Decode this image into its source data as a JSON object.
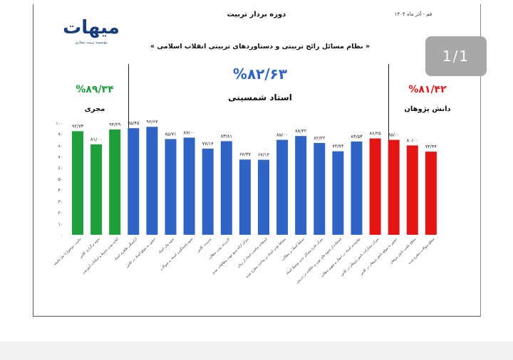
{
  "header": {
    "title": "دوره بردار تربیت",
    "date": "قم - آذر ماه ۱۴۰۴",
    "subtitle": "« نظام مسائل رائج تربیتی و دستاوردهای تربیتی انقلاب اسلامی »",
    "logo_text": "میهات",
    "logo_subtext": "مؤسسه تربیت مجازی"
  },
  "page_indicator": "1/1",
  "groups": [
    {
      "name": "مجری",
      "percent": "%۸۹/۳۴",
      "color": "#1e9e3c"
    },
    {
      "name": "استاد شمسینی",
      "percent": "%۸۲/۶۳",
      "color": "#2f64c5"
    },
    {
      "name": "دانش پژوهان",
      "percent": "%۸۱/۴۲",
      "color": "#e31515"
    }
  ],
  "chart_data": {
    "type": "bar",
    "y_tick_labels": [
      "۰",
      "۱۰",
      "۲۰",
      "۳۰",
      "۴۰",
      "۵۰",
      "۶۰",
      "۷۰",
      "۸۰",
      "۹۰",
      "۱۰۰"
    ],
    "ylim": [
      0,
      100
    ],
    "grid": false,
    "bars": [
      {
        "label": "تناسب موضوع با نیاز جامعه",
        "value": 92.73,
        "value_label": "۹۲/۷۳",
        "color": "#1e9e3c"
      },
      {
        "label": "نحوه برگزاری کلاس",
        "value": 81.0,
        "value_label": "۸۱/۰۰",
        "color": "#1e9e3c"
      },
      {
        "label": "آماده بودن محیط و امکانات آموزشی",
        "value": 94.29,
        "value_label": "۹۴/۲۹",
        "color": "#1e9e3c"
      },
      {
        "label": "آراستگی ظاهری استاد",
        "value": 95.45,
        "value_label": "۹۵/۴۵",
        "color": "#2f64c5"
      },
      {
        "label": "حضور به موقع استاد در کلاس",
        "value": 96.67,
        "value_label": "۹۶/۶۷",
        "color": "#2f64c5"
      },
      {
        "label": "نحوه بیان استاد",
        "value": 85.71,
        "value_label": "۸۵/۷۱",
        "color": "#2f64c5"
      },
      {
        "label": "نحوه پاسخگویی استاد به سوالات",
        "value": 87.0,
        "value_label": "۸۷/۰۰",
        "color": "#2f64c5"
      },
      {
        "label": "مدیریت کلاس",
        "value": 77.14,
        "value_label": "۷۷/۱۴",
        "color": "#2f64c5"
      },
      {
        "label": "کاربردی بودن مطالب",
        "value": 83.81,
        "value_label": "۸۳/۸۱",
        "color": "#2f64c5"
      },
      {
        "label": "میزان ارائه منبع جهت مطالعات بعدی",
        "value": 67.37,
        "value_label": "۶۷/۳۷",
        "color": "#2f64c5"
      },
      {
        "label": "استفاده مناسب استاد از زمان",
        "value": 67.14,
        "value_label": "۶۷/۱۴",
        "color": "#2f64c5"
      },
      {
        "label": "مسلط بودن استاد بر مباحث مطرح شده",
        "value": 85.0,
        "value_label": "۸۵/۰۰",
        "color": "#2f64c5"
      },
      {
        "label": "تسلط استاد بر مطالب",
        "value": 88.42,
        "value_label": "۸۸/۴۲",
        "color": "#2f64c5"
      },
      {
        "label": "میزان طرح مسائل جدید توسط استاد",
        "value": 82.22,
        "value_label": "۸۲/۲۲",
        "color": "#2f64c5"
      },
      {
        "label": "استفاده از شیوه های نوین و خلاقانه در تدریس",
        "value": 74.74,
        "value_label": "۷۴/۷۴",
        "color": "#2f64c5"
      },
      {
        "label": "توانمندی استاد در انتقال و تفهیم مطالب",
        "value": 83.53,
        "value_label": "۸۳/۵۳",
        "color": "#2f64c5"
      },
      {
        "label": "میزان مشارکت دانش پژوهان در کلاس",
        "value": 86.25,
        "value_label": "۸۶/۲۵",
        "color": "#e31515"
      },
      {
        "label": "حضور به موقع دانش پژوهان در کلاس",
        "value": 85.0,
        "value_label": "۸۵/۰۰",
        "color": "#e31515"
      },
      {
        "label": "سطح علمی دانش پژوهان",
        "value": 80.0,
        "value_label": "۸۰/۰۰",
        "color": "#e31515"
      },
      {
        "label": "سطح سوالات مطرح شده",
        "value": 74.44,
        "value_label": "۷۴/۴۴",
        "color": "#e31515"
      }
    ]
  }
}
